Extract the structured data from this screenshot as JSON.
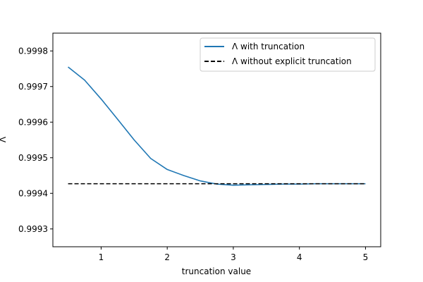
{
  "chart_data": {
    "type": "line",
    "title": "",
    "xlabel": "truncation value",
    "ylabel": "Λ",
    "xlim": [
      0.27,
      5.23
    ],
    "ylim": [
      0.99925,
      0.99985
    ],
    "xticks": [
      1,
      2,
      3,
      4,
      5
    ],
    "xtick_labels": [
      "1",
      "2",
      "3",
      "4",
      "5"
    ],
    "yticks": [
      0.9993,
      0.9994,
      0.9995,
      0.9996,
      0.9997,
      0.9998
    ],
    "ytick_labels": [
      "0.9993",
      "0.9994",
      "0.9995",
      "0.9996",
      "0.9997",
      "0.9998"
    ],
    "grid": false,
    "legend_position": "top-right",
    "series": [
      {
        "name": "Λ with truncation",
        "color": "#1f77b4",
        "style": "solid",
        "x": [
          0.5,
          0.75,
          1.0,
          1.25,
          1.5,
          1.75,
          2.0,
          2.25,
          2.5,
          2.75,
          3.0,
          3.25,
          3.5,
          3.75,
          4.0,
          4.25,
          4.5,
          4.75,
          5.0
        ],
        "y": [
          0.999755,
          0.999718,
          0.999665,
          0.999608,
          0.99955,
          0.999498,
          0.999467,
          0.99945,
          0.999435,
          0.999426,
          0.999423,
          0.999424,
          0.999425,
          0.999426,
          0.999426,
          0.999427,
          0.999427,
          0.999427,
          0.999427
        ]
      },
      {
        "name": "Λ without explicit truncation",
        "color": "#000000",
        "style": "dashed",
        "x": [
          0.5,
          5.0
        ],
        "y": [
          0.999427,
          0.999427
        ]
      }
    ]
  }
}
